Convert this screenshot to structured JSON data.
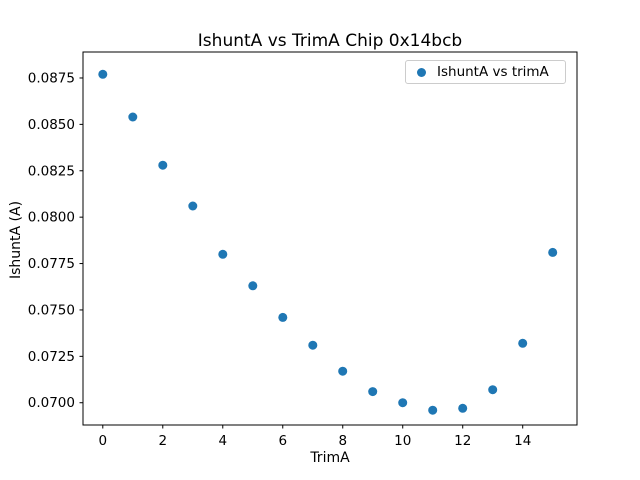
{
  "chart_data": {
    "type": "scatter",
    "title": "IshuntA vs TrimA Chip 0x14bcb",
    "xlabel": "TrimA",
    "ylabel": "IshuntA (A)",
    "grid": false,
    "legend_position": "upper right",
    "legend_label": "IshuntA vs trimA",
    "xlim": [
      -0.66,
      15.81
    ],
    "ylim": [
      0.0688,
      0.0889
    ],
    "xticks": {
      "values": [
        0,
        2,
        4,
        6,
        8,
        10,
        12,
        14
      ],
      "labels": [
        "0",
        "2",
        "4",
        "6",
        "8",
        "10",
        "12",
        "14"
      ]
    },
    "yticks": {
      "values": [
        0.07,
        0.0725,
        0.075,
        0.0775,
        0.08,
        0.0825,
        0.085,
        0.0875
      ],
      "labels": [
        "0.0700",
        "0.0725",
        "0.0750",
        "0.0775",
        "0.0800",
        "0.0825",
        "0.0850",
        "0.0875"
      ]
    },
    "series": [
      {
        "name": "IshuntA vs trimA",
        "color": "#1f77b4",
        "x": [
          0,
          1,
          2,
          3,
          4,
          5,
          6,
          7,
          8,
          9,
          10,
          11,
          12,
          13,
          14,
          15
        ],
        "y": [
          0.0877,
          0.0854,
          0.0828,
          0.0806,
          0.078,
          0.0763,
          0.0746,
          0.0731,
          0.0717,
          0.0706,
          0.07,
          0.0696,
          0.0697,
          0.0707,
          0.0732,
          0.0781
        ]
      }
    ]
  }
}
